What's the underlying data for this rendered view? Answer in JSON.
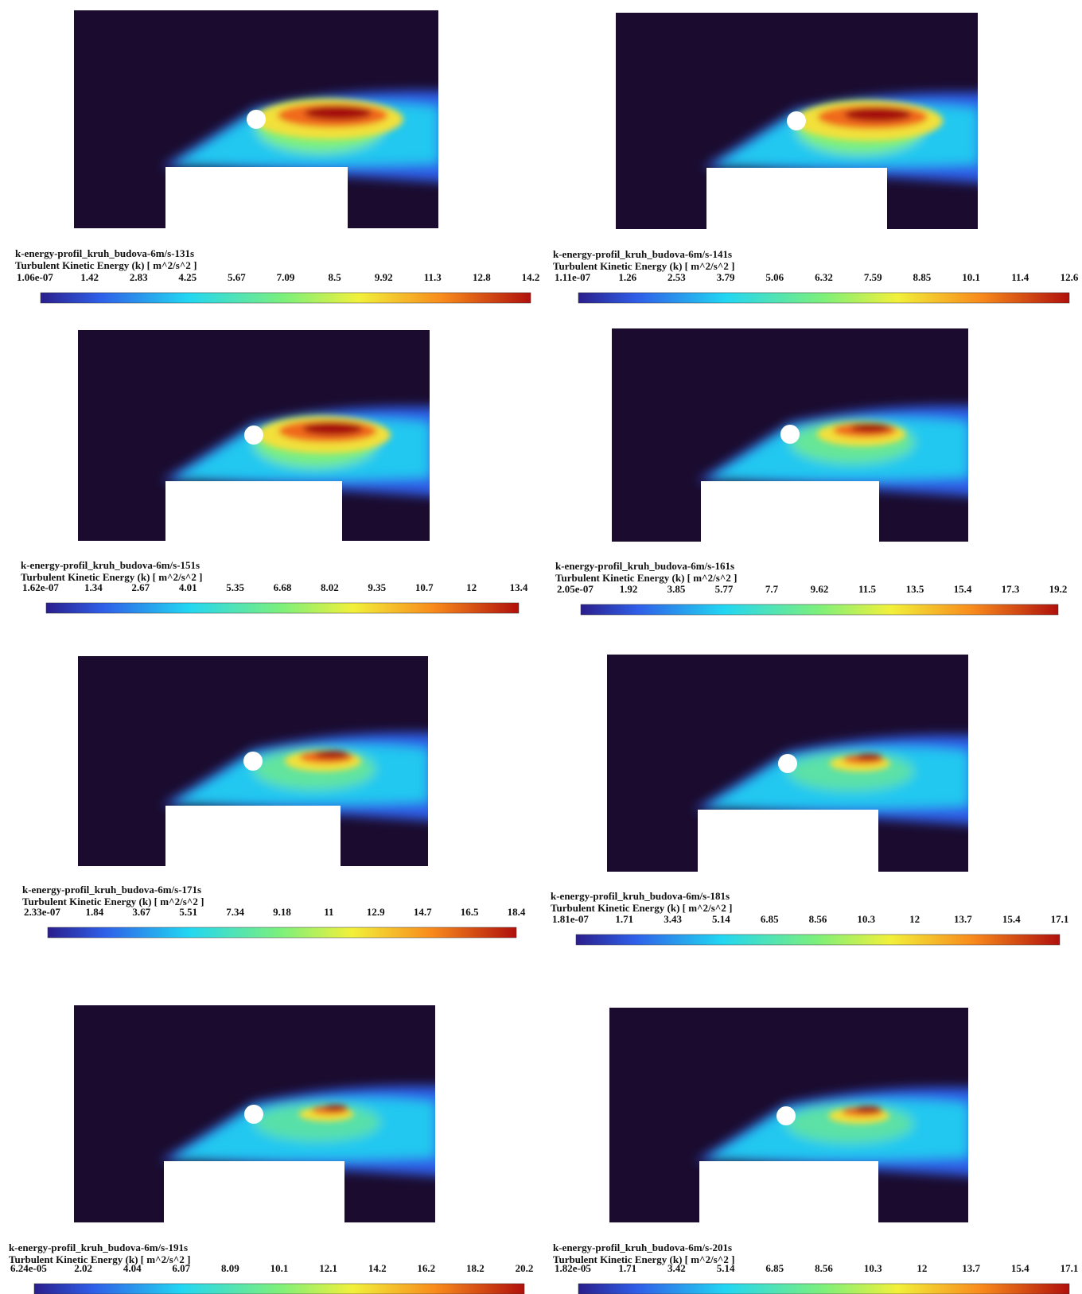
{
  "panels": [
    {
      "title": "k-energy-profil_kruh_budova-6m/s-131s",
      "quantity": "Turbulent Kinetic Energy (k) [ m^2/s^2 ]",
      "ticks": [
        "1.06e-07",
        "1.42",
        "2.83",
        "4.25",
        "5.67",
        "7.09",
        "8.5",
        "9.92",
        "11.3",
        "12.8",
        "14.2"
      ]
    },
    {
      "title": "k-energy-profil_kruh_budova-6m/s-141s",
      "quantity": "Turbulent Kinetic Energy (k) [ m^2/s^2 ]",
      "ticks": [
        "1.11e-07",
        "1.26",
        "2.53",
        "3.79",
        "5.06",
        "6.32",
        "7.59",
        "8.85",
        "10.1",
        "11.4",
        "12.6"
      ]
    },
    {
      "title": "k-energy-profil_kruh_budova-6m/s-151s",
      "quantity": "Turbulent Kinetic Energy (k) [ m^2/s^2 ]",
      "ticks": [
        "1.62e-07",
        "1.34",
        "2.67",
        "4.01",
        "5.35",
        "6.68",
        "8.02",
        "9.35",
        "10.7",
        "12",
        "13.4"
      ]
    },
    {
      "title": "k-energy-profil_kruh_budova-6m/s-161s",
      "quantity": "Turbulent Kinetic Energy (k) [ m^2/s^2 ]",
      "ticks": [
        "2.05e-07",
        "1.92",
        "3.85",
        "5.77",
        "7.7",
        "9.62",
        "11.5",
        "13.5",
        "15.4",
        "17.3",
        "19.2"
      ]
    },
    {
      "title": "k-energy-profil_kruh_budova-6m/s-171s",
      "quantity": "Turbulent Kinetic Energy (k) [ m^2/s^2 ]",
      "ticks": [
        "2.33e-07",
        "1.84",
        "3.67",
        "5.51",
        "7.34",
        "9.18",
        "11",
        "12.9",
        "14.7",
        "16.5",
        "18.4"
      ]
    },
    {
      "title": "k-energy-profil_kruh_budova-6m/s-181s",
      "quantity": "Turbulent Kinetic Energy (k) [ m^2/s^2 ]",
      "ticks": [
        "1.81e-07",
        "1.71",
        "3.43",
        "5.14",
        "6.85",
        "8.56",
        "10.3",
        "12",
        "13.7",
        "15.4",
        "17.1"
      ]
    },
    {
      "title": "k-energy-profil_kruh_budova-6m/s-191s",
      "quantity": "Turbulent Kinetic Energy (k) [ m^2/s^2 ]",
      "ticks": [
        "6.24e-05",
        "2.02",
        "4.04",
        "6.07",
        "8.09",
        "10.1",
        "12.1",
        "14.2",
        "16.2",
        "18.2",
        "20.2"
      ]
    },
    {
      "title": "k-energy-profil_kruh_budova-6m/s-201s",
      "quantity": "Turbulent Kinetic Energy (k) [ m^2/s^2 ]",
      "ticks": [
        "1.82e-05",
        "1.71",
        "3.42",
        "5.14",
        "6.85",
        "8.56",
        "10.3",
        "12",
        "13.7",
        "15.4",
        "17.1"
      ]
    }
  ]
}
